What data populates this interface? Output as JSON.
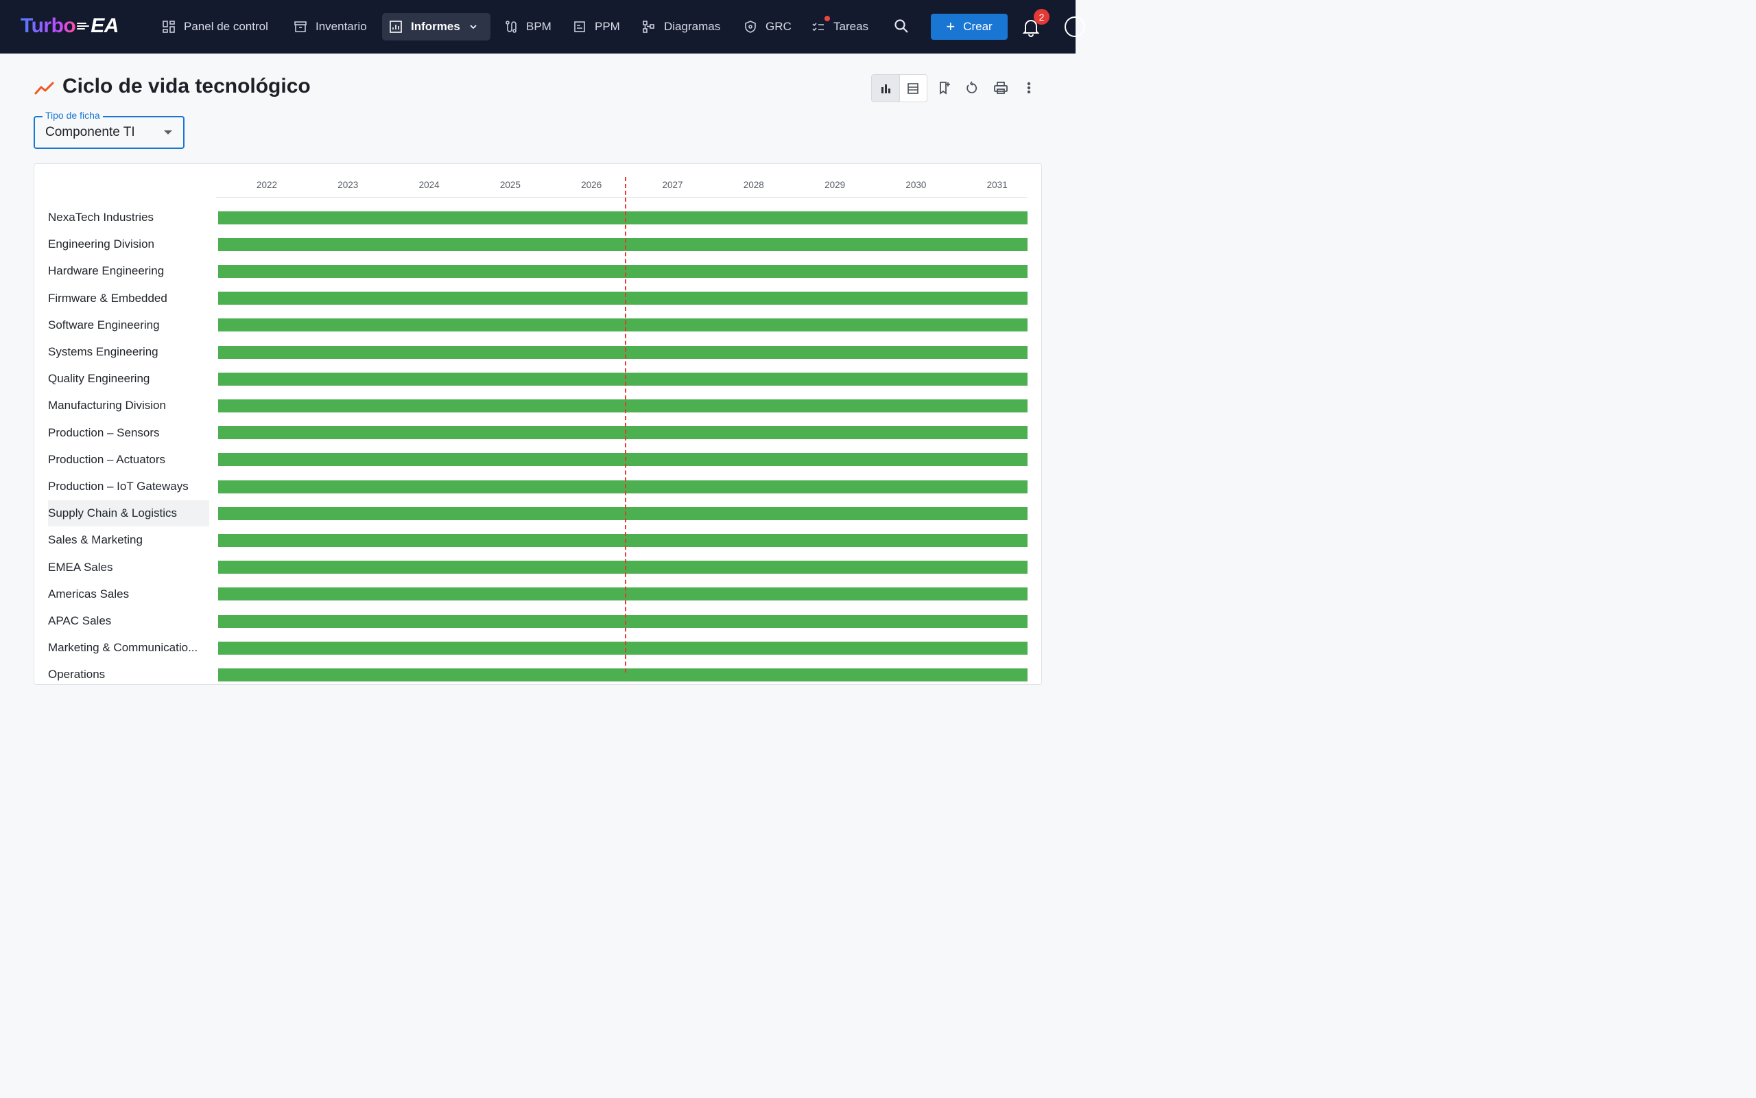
{
  "nav": {
    "logo_left": "Turbo",
    "logo_right": "EA",
    "items": [
      {
        "label": "Panel de control",
        "icon": "dashboard-icon"
      },
      {
        "label": "Inventario",
        "icon": "archive-icon"
      },
      {
        "label": "Informes",
        "icon": "report-chart-icon",
        "active": true
      },
      {
        "label": "BPM",
        "icon": "route-icon"
      },
      {
        "label": "PPM",
        "icon": "project-icon"
      },
      {
        "label": "Diagramas",
        "icon": "diagram-icon"
      },
      {
        "label": "GRC",
        "icon": "shield-icon"
      },
      {
        "label": "Tareas",
        "icon": "tasks-icon"
      }
    ],
    "create_label": "Crear",
    "notification_count": "2"
  },
  "page": {
    "title": "Ciclo de vida tecnológico",
    "title_icon": "trend-line-icon"
  },
  "toolbar": {
    "view_chart_icon": "bar-chart-icon",
    "view_table_icon": "table-icon",
    "bookmark_icon": "bookmark-add-icon",
    "reset_icon": "reset-icon",
    "print_icon": "print-icon",
    "more_icon": "more-vertical-icon"
  },
  "filter": {
    "label": "Tipo de ficha",
    "value": "Componente TI"
  },
  "accent_colors": {
    "primary": "#1976d2",
    "bar": "#4caf50",
    "today_line": "#e53935",
    "nav_bg": "#141a2e"
  },
  "chart_data": {
    "type": "gantt",
    "x_axis_years": [
      "2022",
      "2023",
      "2024",
      "2025",
      "2026",
      "2027",
      "2028",
      "2029",
      "2030",
      "2031"
    ],
    "today_marker_year_fraction": 2026.42,
    "rows": [
      {
        "name": "NexaTech Industries",
        "start": 2021.4,
        "end": 2031.4
      },
      {
        "name": "Engineering Division",
        "start": 2021.4,
        "end": 2031.4
      },
      {
        "name": "Hardware Engineering",
        "start": 2021.4,
        "end": 2031.4
      },
      {
        "name": "Firmware & Embedded",
        "start": 2021.4,
        "end": 2031.4
      },
      {
        "name": "Software Engineering",
        "start": 2021.4,
        "end": 2031.4
      },
      {
        "name": "Systems Engineering",
        "start": 2021.4,
        "end": 2031.4
      },
      {
        "name": "Quality Engineering",
        "start": 2021.4,
        "end": 2031.4
      },
      {
        "name": "Manufacturing Division",
        "start": 2021.4,
        "end": 2031.4
      },
      {
        "name": "Production – Sensors",
        "start": 2021.4,
        "end": 2031.4
      },
      {
        "name": "Production – Actuators",
        "start": 2021.4,
        "end": 2031.4
      },
      {
        "name": "Production – IoT Gateways",
        "start": 2021.4,
        "end": 2031.4
      },
      {
        "name": "Supply Chain & Logistics",
        "start": 2021.4,
        "end": 2031.4,
        "highlighted": true
      },
      {
        "name": "Sales & Marketing",
        "start": 2021.4,
        "end": 2031.4
      },
      {
        "name": "EMEA Sales",
        "start": 2021.4,
        "end": 2031.4
      },
      {
        "name": "Americas Sales",
        "start": 2021.4,
        "end": 2031.4
      },
      {
        "name": "APAC Sales",
        "start": 2021.4,
        "end": 2031.4
      },
      {
        "name": "Marketing & Communicatio...",
        "start": 2021.4,
        "end": 2031.4
      },
      {
        "name": "Operations",
        "start": 2021.4,
        "end": 2031.4
      }
    ]
  }
}
